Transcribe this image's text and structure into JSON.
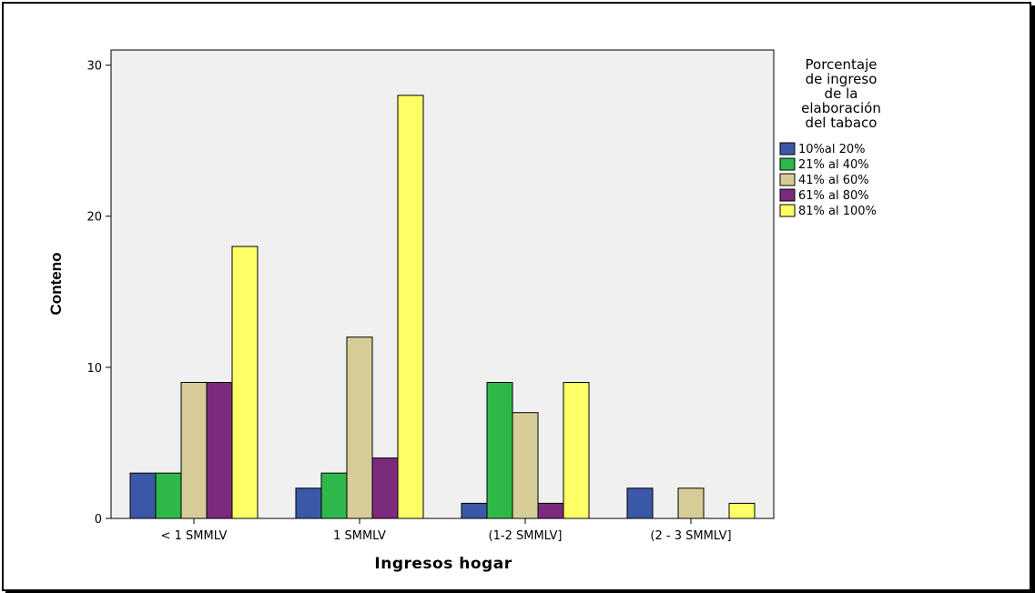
{
  "chart_data": {
    "type": "bar",
    "title": "",
    "xlabel": "Ingresos hogar",
    "ylabel": "Conteno",
    "ylim": [
      0,
      31
    ],
    "yticks": [
      0,
      10,
      20,
      30
    ],
    "grid": false,
    "legend_position": "right",
    "legend_title": [
      "Porcentaje",
      "de ingreso",
      "de la",
      "elaboración",
      "del tabaco"
    ],
    "categories": [
      "< 1 SMMLV",
      "1 SMMLV",
      "(1-2 SMMLV]",
      "(2 - 3 SMMLV]"
    ],
    "series": [
      {
        "name": "10%al 20%",
        "color": "#3b57a8",
        "values": [
          3,
          2,
          1,
          2
        ]
      },
      {
        "name": "21% al 40%",
        "color": "#2eb84a",
        "values": [
          3,
          3,
          9,
          0
        ]
      },
      {
        "name": "41% al 60%",
        "color": "#d6cc98",
        "values": [
          9,
          12,
          7,
          2
        ]
      },
      {
        "name": "61% al 80%",
        "color": "#7c2a7c",
        "values": [
          9,
          4,
          1,
          0
        ]
      },
      {
        "name": "81% al 100%",
        "color": "#ffff66",
        "values": [
          18,
          28,
          9,
          1
        ]
      }
    ],
    "plot_background": "#f0f0f0"
  }
}
